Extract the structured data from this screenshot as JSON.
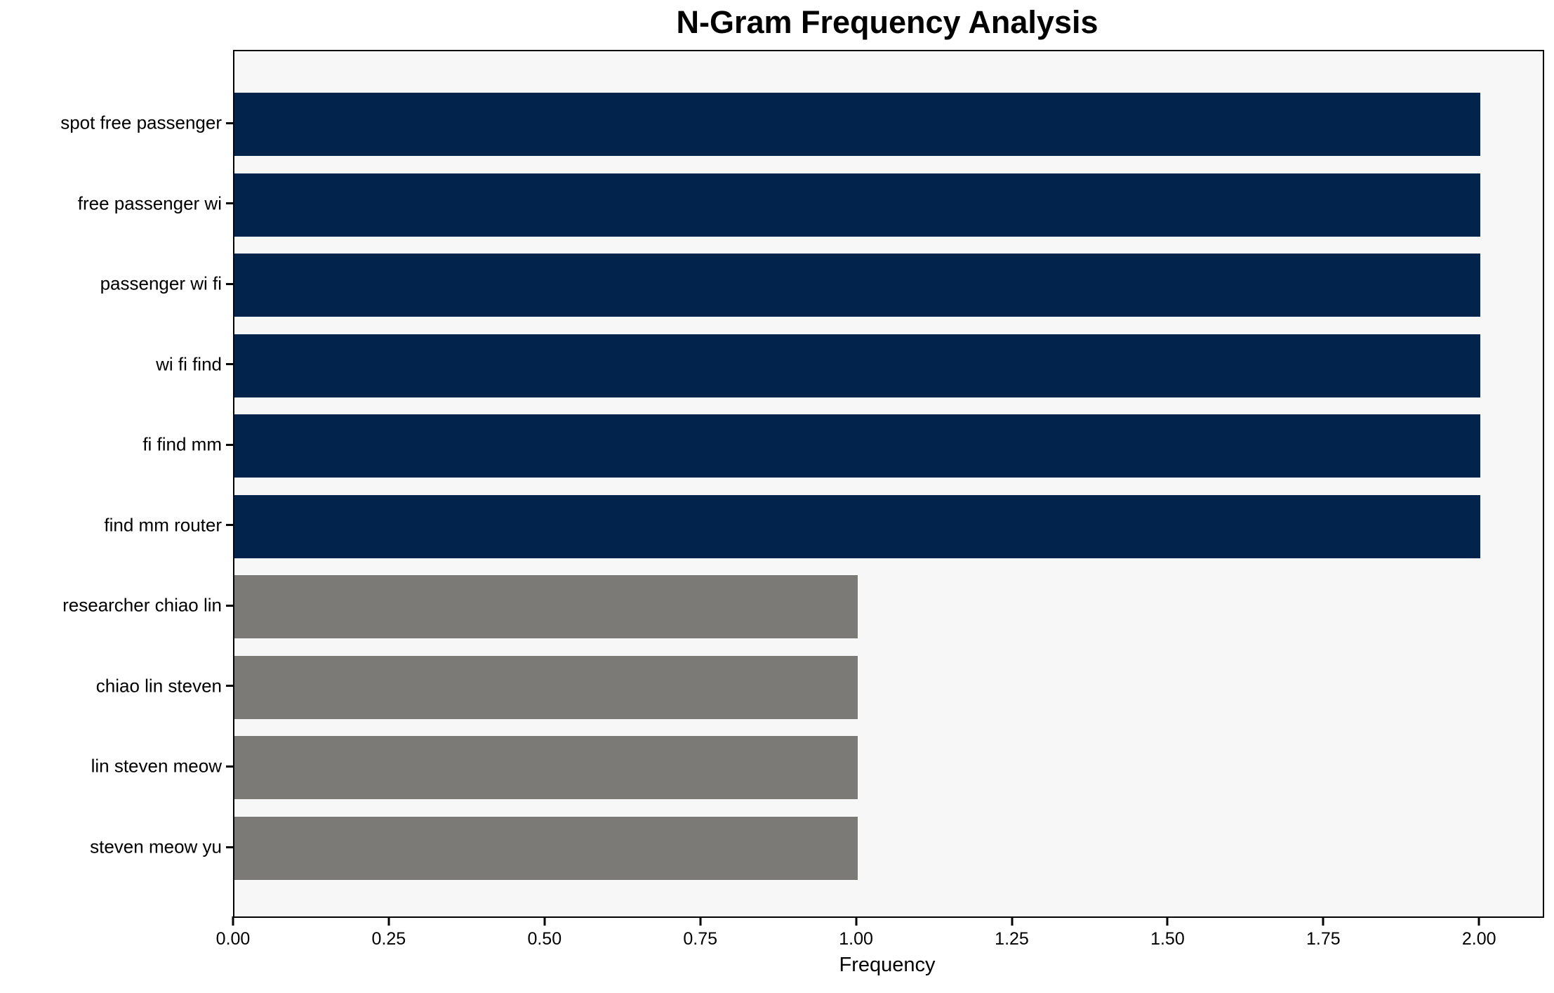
{
  "chart_data": {
    "type": "bar",
    "orientation": "horizontal",
    "title": "N-Gram Frequency Analysis",
    "xlabel": "Frequency",
    "ylabel": "",
    "categories": [
      "spot free passenger",
      "free passenger wi",
      "passenger wi fi",
      "wi fi find",
      "fi find mm",
      "find mm router",
      "researcher chiao lin",
      "chiao lin steven",
      "lin steven meow",
      "steven meow yu"
    ],
    "values": [
      2,
      2,
      2,
      2,
      2,
      2,
      1,
      1,
      1,
      1
    ],
    "bar_colors": [
      "#02234c",
      "#02234c",
      "#02234c",
      "#02234c",
      "#02234c",
      "#02234c",
      "#7b7a77",
      "#7b7a77",
      "#7b7a77",
      "#7b7a77"
    ],
    "xlim": [
      0,
      2.1
    ],
    "x_ticks": [
      0.0,
      0.25,
      0.5,
      0.75,
      1.0,
      1.25,
      1.5,
      1.75,
      2.0
    ],
    "x_tick_labels": [
      "0.00",
      "0.25",
      "0.50",
      "0.75",
      "1.00",
      "1.25",
      "1.50",
      "1.75",
      "2.00"
    ],
    "grid": false,
    "legend": null,
    "colors": {
      "navy": "#02234c",
      "gray": "#7b7a77",
      "plot_background": "#f7f7f8",
      "figure_background": "#ffffff",
      "spine": "#000000",
      "text": "#000000"
    }
  }
}
